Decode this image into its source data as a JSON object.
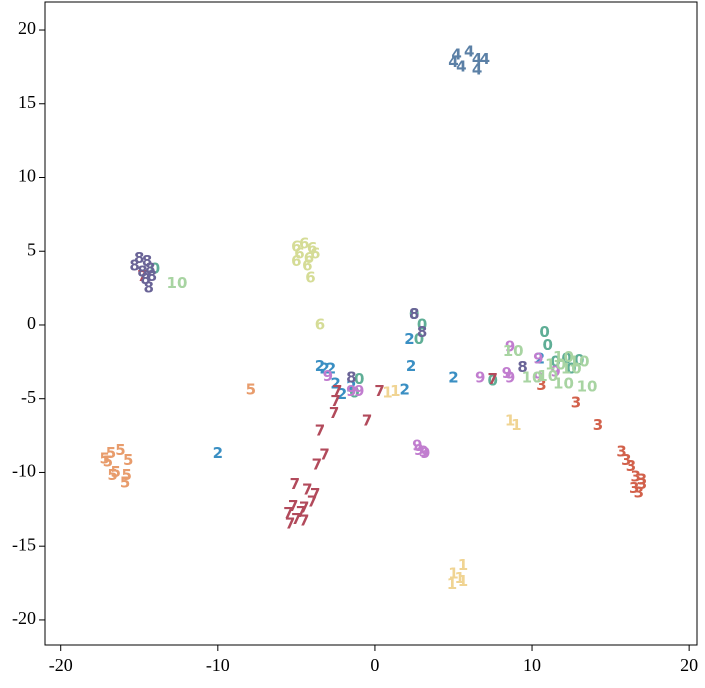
{
  "chart_data": {
    "type": "scatter",
    "xlim": [
      -21,
      20.5
    ],
    "ylim": [
      -21.7,
      21.9
    ],
    "xticks": [
      -20,
      -10,
      0,
      10,
      20
    ],
    "yticks": [
      -20,
      -15,
      -10,
      -5,
      0,
      5,
      10,
      15,
      20
    ],
    "series": [
      {
        "name": "0",
        "color": "#5fae96",
        "x": [
          -14,
          2.5,
          3,
          2.8,
          10.8,
          11,
          11.5,
          12.5,
          13,
          12.2,
          7.5,
          -1,
          -1.3
        ],
        "values": [
          3.8,
          0.7,
          0,
          -1,
          -0.5,
          -1.4,
          -2.5,
          -3,
          -2.4,
          -2.3,
          -3.8,
          -3.7,
          -4.6
        ]
      },
      {
        "name": "1",
        "color": "#f0d493",
        "x": [
          0.8,
          1.3,
          8.6,
          9,
          5.6,
          5,
          5.4,
          4.9,
          5.6
        ],
        "values": [
          -4.6,
          -4.5,
          -6.5,
          -6.8,
          -16.3,
          -16.9,
          -17.2,
          -17.6,
          -17.4
        ]
      },
      {
        "name": "2",
        "color": "#3a8fc3",
        "x": [
          -3.5,
          -2.8,
          -2.5,
          -1.5,
          -3.2,
          2.2,
          2.3,
          1.9,
          5,
          -10,
          10.5,
          -2.1
        ],
        "values": [
          -2.8,
          -3,
          -4,
          -4.2,
          -3,
          -1,
          -2.8,
          -4.4,
          -3.6,
          -8.7,
          -2.3,
          -4.7
        ]
      },
      {
        "name": "3",
        "color": "#d2614b",
        "x": [
          10.6,
          12.8,
          14.2,
          15.7,
          16,
          16.3,
          16.6,
          17,
          16.5,
          17,
          16.8
        ],
        "values": [
          -4.1,
          -5.3,
          -6.8,
          -8.6,
          -9.2,
          -9.6,
          -10.3,
          -10.5,
          -11.1,
          -10.8,
          -11.4
        ]
      },
      {
        "name": "4",
        "color": "#5b80a6",
        "x": [
          5.2,
          6,
          5,
          6.5,
          5.5,
          6.5,
          7
        ],
        "values": [
          18.3,
          18.5,
          17.8,
          18,
          17.5,
          17.3,
          18
        ]
      },
      {
        "name": "5",
        "color": "#e89c6c",
        "x": [
          -7.9,
          -16.8,
          -16.2,
          -17,
          -15.7,
          -16.7,
          -15.8,
          -15.9,
          -16.5,
          -17.2
        ],
        "values": [
          -4.4,
          -8.7,
          -8.5,
          -9.3,
          -9.2,
          -10.2,
          -10.2,
          -10.7,
          -10,
          -9.1
        ]
      },
      {
        "name": "6",
        "color": "#d5dc96",
        "x": [
          -5,
          -4.5,
          -4,
          -4.8,
          -3.8,
          -4.2,
          -5,
          -4.3,
          -4.1,
          -3.5
        ],
        "values": [
          5.3,
          5.5,
          5.2,
          4.8,
          4.8,
          4.5,
          4.3,
          4,
          3.2,
          0
        ]
      },
      {
        "name": "7",
        "color": "#b24a5b",
        "x": [
          -14.8,
          -2.4,
          -2.5,
          -2.6,
          -0.5,
          0.3,
          -3.5,
          -3.2,
          -3.7,
          -5.1,
          -4.3,
          -3.8,
          -4,
          -4.5,
          -5.2,
          -5.5,
          -5,
          -4.5,
          -5.4,
          -4.7,
          7.5
        ],
        "values": [
          3.3,
          -4.5,
          -5.2,
          -6,
          -6.5,
          -4.5,
          -7.2,
          -8.8,
          -9.5,
          -10.8,
          -11.2,
          -11.5,
          -12,
          -12.4,
          -12.3,
          -12.8,
          -13.2,
          -13.3,
          -13.5,
          -12.7,
          -3.7
        ]
      },
      {
        "name": "8",
        "color": "#6a6497",
        "x": [
          -15,
          -14.5,
          -15.3,
          -14.8,
          -14.3,
          -14.6,
          -14.4,
          -14.2,
          -1.5,
          3,
          2.5,
          9.4
        ],
        "values": [
          4.5,
          4.3,
          4,
          3.6,
          3.8,
          3.1,
          2.5,
          3.3,
          -3.6,
          -0.5,
          0.7,
          -2.9
        ]
      },
      {
        "name": "9",
        "color": "#c17dcf",
        "x": [
          -3,
          -1.5,
          -1,
          2.7,
          3.1,
          2.8,
          3.2,
          6.7,
          8.4,
          8.6,
          8.6,
          10.4,
          11.5,
          10.4
        ],
        "values": [
          -3.5,
          -4.5,
          -4.5,
          -8.2,
          -8.6,
          -8.5,
          -8.7,
          -3.6,
          -3.3,
          -1.5,
          -3.6,
          -2.3,
          -3.2,
          -3.6
        ]
      },
      {
        "name": "10",
        "color": "#a8d4a2",
        "x": [
          -12.6,
          8.8,
          12,
          13,
          12.5,
          11,
          13.5,
          12,
          11.5,
          10
        ],
        "values": [
          2.8,
          -1.8,
          -2.2,
          -2.5,
          -3,
          -3.5,
          -4.2,
          -4,
          -2.7,
          -3.6
        ]
      }
    ]
  }
}
